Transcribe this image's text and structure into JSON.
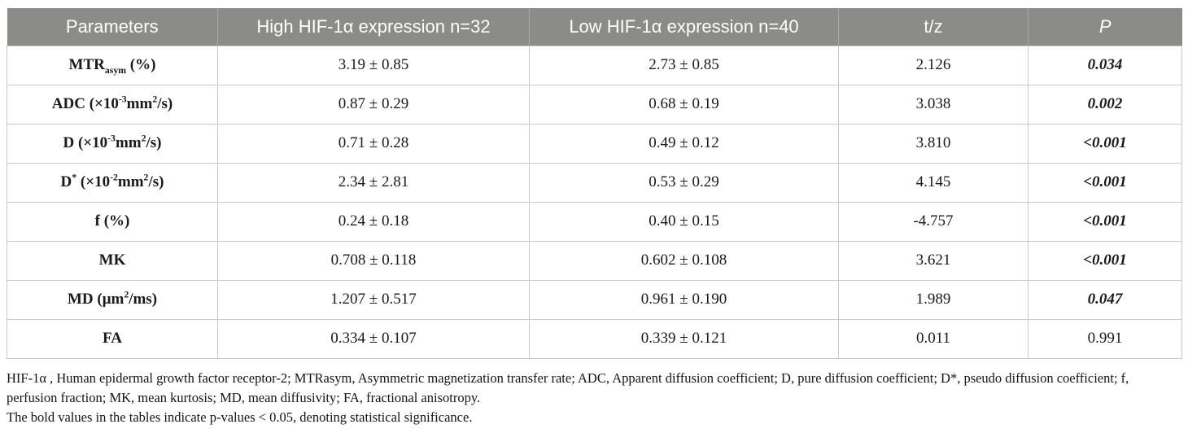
{
  "colors": {
    "header_bg": "#8b8b89",
    "header_text": "#ffffff",
    "border": "#c9c9c9",
    "text": "#1a1a1a"
  },
  "table": {
    "columns": [
      {
        "label": "Parameters"
      },
      {
        "label": "High HIF-1α expression n=32"
      },
      {
        "label": "Low HIF-1α expression n=40"
      },
      {
        "label": "t/z"
      },
      {
        "label": "P"
      }
    ],
    "rows": [
      {
        "parameter": [
          {
            "t": "MTR"
          },
          {
            "t": "asym",
            "v": "sub"
          },
          {
            "t": " (%)"
          }
        ],
        "high": "3.19 ± 0.85",
        "low": "2.73 ± 0.85",
        "tz": "2.126",
        "p": "0.034",
        "p_significant": true
      },
      {
        "parameter": [
          {
            "t": "ADC (×10"
          },
          {
            "t": "-3",
            "v": "sup"
          },
          {
            "t": "mm"
          },
          {
            "t": "2",
            "v": "sup"
          },
          {
            "t": "/s)"
          }
        ],
        "high": "0.87 ± 0.29",
        "low": "0.68 ± 0.19",
        "tz": "3.038",
        "p": "0.002",
        "p_significant": true
      },
      {
        "parameter": [
          {
            "t": "D (×10"
          },
          {
            "t": "-3",
            "v": "sup"
          },
          {
            "t": "mm"
          },
          {
            "t": "2",
            "v": "sup"
          },
          {
            "t": "/s)"
          }
        ],
        "high": "0.71 ± 0.28",
        "low": "0.49 ± 0.12",
        "tz": "3.810",
        "p": "<0.001",
        "p_significant": true
      },
      {
        "parameter": [
          {
            "t": "D"
          },
          {
            "t": "*",
            "v": "sup"
          },
          {
            "t": " (×10"
          },
          {
            "t": "-2",
            "v": "sup"
          },
          {
            "t": "mm"
          },
          {
            "t": "2",
            "v": "sup"
          },
          {
            "t": "/s)"
          }
        ],
        "high": "2.34 ± 2.81",
        "low": "0.53 ± 0.29",
        "tz": "4.145",
        "p": "<0.001",
        "p_significant": true
      },
      {
        "parameter": [
          {
            "t": "f (%)"
          }
        ],
        "high": "0.24 ± 0.18",
        "low": "0.40 ± 0.15",
        "tz": "-4.757",
        "p": "<0.001",
        "p_significant": true
      },
      {
        "parameter": [
          {
            "t": "MK"
          }
        ],
        "high": "0.708 ± 0.118",
        "low": "0.602 ± 0.108",
        "tz": "3.621",
        "p": "<0.001",
        "p_significant": true
      },
      {
        "parameter": [
          {
            "t": "MD (μm"
          },
          {
            "t": "2",
            "v": "sup"
          },
          {
            "t": "/ms)"
          }
        ],
        "high": "1.207 ± 0.517",
        "low": "0.961 ± 0.190",
        "tz": "1.989",
        "p": "0.047",
        "p_significant": true
      },
      {
        "parameter": [
          {
            "t": "FA"
          }
        ],
        "high": "0.334 ± 0.107",
        "low": "0.339 ± 0.121",
        "tz": "0.011",
        "p": "0.991",
        "p_significant": false
      }
    ]
  },
  "footnotes": [
    "HIF-1α , Human epidermal growth factor receptor-2; MTRasym, Asymmetric magnetization transfer rate; ADC, Apparent diffusion coefficient; D, pure diffusion coefficient; D*, pseudo diffusion coefficient; f, perfusion fraction; MK, mean kurtosis; MD, mean diffusivity; FA, fractional anisotropy.",
    "The bold values in the tables indicate p-values < 0.05, denoting statistical significance."
  ]
}
